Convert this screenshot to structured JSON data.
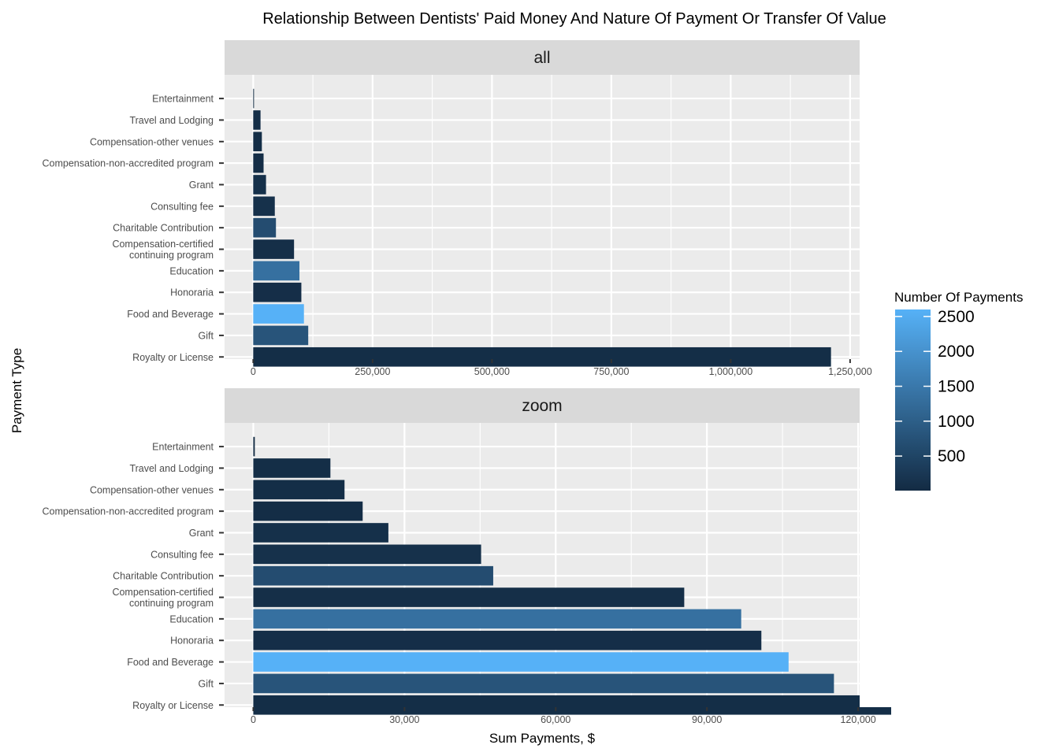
{
  "chart_data": {
    "type": "bar",
    "orientation": "horizontal",
    "title": "Relationship Between Dentists' Paid Money And Nature Of Payment Or Transfer Of Value",
    "xlabel": "Sum Payments, $",
    "ylabel": "Payment Type",
    "categories": [
      "Royalty or License",
      "Gift",
      "Food and Beverage",
      "Honoraria",
      "Education",
      "Compensation-certified continuing program",
      "Charitable Contribution",
      "Consulting fee",
      "Grant",
      "Compensation-non-accredited program",
      "Compensation-other venues",
      "Travel and Lodging",
      "Entertainment"
    ],
    "category_display_lines": [
      [
        "Royalty or License"
      ],
      [
        "Gift"
      ],
      [
        "Food and Beverage"
      ],
      [
        "Honoraria"
      ],
      [
        "Education"
      ],
      [
        "Compensation-certified",
        "continuing program"
      ],
      [
        "Charitable Contribution"
      ],
      [
        "Consulting fee"
      ],
      [
        "Grant"
      ],
      [
        "Compensation-non-accredited program"
      ],
      [
        "Compensation-other venues"
      ],
      [
        "Travel and Lodging"
      ],
      [
        "Entertainment"
      ]
    ],
    "values": [
      1210000,
      115200,
      106200,
      100800,
      96800,
      85500,
      47600,
      45200,
      26800,
      21700,
      18100,
      15300,
      300
    ],
    "counts": [
      60,
      800,
      2600,
      70,
      1350,
      80,
      650,
      120,
      100,
      50,
      60,
      60,
      5
    ],
    "panels": [
      {
        "strip": "all",
        "xlim": [
          -60000,
          1270000
        ],
        "ticks": [
          0,
          250000,
          500000,
          750000,
          1000000,
          1250000
        ],
        "tick_labels": [
          "0",
          "250,000",
          "500,000",
          "750,000",
          "1,000,000",
          "1,250,000"
        ]
      },
      {
        "strip": "zoom",
        "xlim": [
          -5700,
          120300
        ],
        "ticks": [
          0,
          30000,
          60000,
          90000,
          120000
        ],
        "tick_labels": [
          "0",
          "30,000",
          "60,000",
          "90,000",
          "120,000"
        ]
      }
    ],
    "legend": {
      "title": "Number Of Payments",
      "position": "right",
      "range": [
        5,
        2600
      ],
      "ticks": [
        500,
        1000,
        1500,
        2000,
        2500
      ],
      "tick_labels": [
        "500",
        "1000",
        "1500",
        "2000",
        "2500"
      ],
      "low_color": "#132B43",
      "high_color": "#56B1F7"
    },
    "grid": true,
    "panel_background": "#EBEBEB",
    "strip_background": "#D9D9D9"
  }
}
